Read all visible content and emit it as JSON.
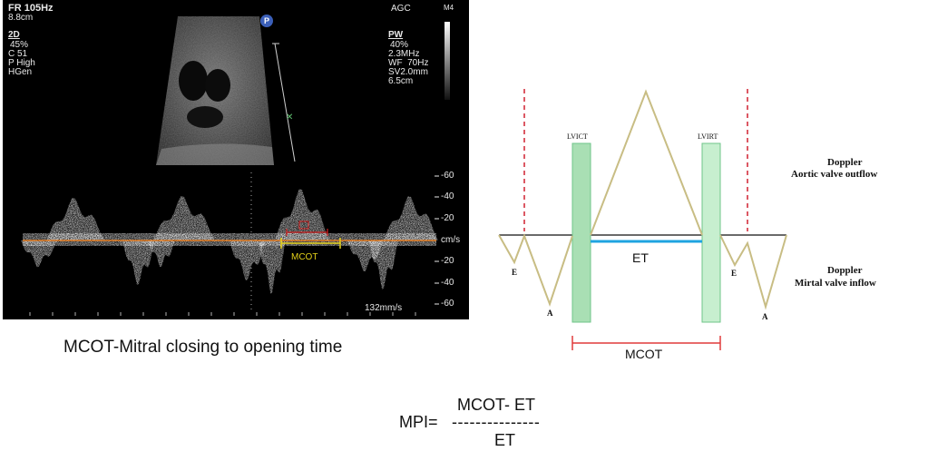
{
  "ultrasound": {
    "fr": "FR 105Hz",
    "depth": "8.8cm",
    "agc": "AGC",
    "m4": "M4",
    "p_marker": "P",
    "left_params": {
      "mode": "2D",
      "lines": [
        "45%",
        "C 51",
        "P High",
        "HGen"
      ]
    },
    "right_params": {
      "mode": "PW",
      "lines": [
        "40%",
        "2.3MHz",
        "WF  70Hz",
        "SV2.0mm",
        "6.5cm"
      ]
    },
    "scale_ticks": [
      "-60",
      "-40",
      "-20",
      "cm/s",
      "-20",
      "-40",
      "-60"
    ],
    "sweep_speed": "132mm/s",
    "mcot_label": "MCOT",
    "colors": {
      "baseline": "#e07a20",
      "mcot": "#e6d21a",
      "marker": "#d02020"
    }
  },
  "caption": "MCOT-Mitral closing to opening time",
  "diagram": {
    "lvict": "LVICT",
    "lvirt": "LVIRT",
    "et": "ET",
    "mcot": "MCOT",
    "e_left": "E",
    "a_left": "A",
    "e_right": "E",
    "a_right": "A",
    "outflow_title": "Doppler",
    "outflow_sub": "Aortic valve outflow",
    "inflow_title": "Doppler",
    "inflow_sub": "Mirtal valve inflow",
    "colors": {
      "wave": "#c8bd84",
      "green_fill": "#a9dfb4",
      "green_stroke": "#6fc48a",
      "et_line": "#1fa4e0",
      "mcot_line": "#e03a3a",
      "dashed": "#d02030"
    }
  },
  "formula": {
    "lhs": "MPI=",
    "numerator": "MCOT- ET",
    "bar": "---------------",
    "denominator": "ET"
  }
}
